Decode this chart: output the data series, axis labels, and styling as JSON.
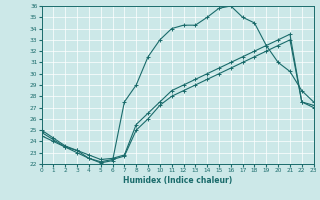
{
  "xlabel": "Humidex (Indice chaleur)",
  "bg_color": "#cce8e8",
  "line_color": "#1a6b6b",
  "xlim": [
    0,
    23
  ],
  "ylim": [
    22,
    36
  ],
  "ytick_values": [
    22,
    23,
    24,
    25,
    26,
    27,
    28,
    29,
    30,
    31,
    32,
    33,
    34,
    35,
    36
  ],
  "xtick_values": [
    0,
    1,
    2,
    3,
    4,
    5,
    6,
    7,
    8,
    9,
    10,
    11,
    12,
    13,
    14,
    15,
    16,
    17,
    18,
    19,
    20,
    21,
    22,
    23
  ],
  "curve1_x": [
    0,
    1,
    2,
    3,
    4,
    5,
    6,
    7,
    8,
    9,
    10,
    11,
    12,
    13,
    14,
    15,
    16,
    17,
    18,
    19,
    20,
    21,
    22,
    23
  ],
  "curve1_y": [
    25.0,
    24.3,
    23.6,
    23.2,
    22.5,
    22.1,
    22.3,
    27.5,
    29.0,
    31.5,
    33.0,
    34.0,
    34.3,
    34.3,
    35.0,
    35.8,
    36.0,
    35.0,
    34.5,
    32.5,
    31.0,
    30.2,
    28.5,
    27.5
  ],
  "curve2_x": [
    0,
    2,
    3,
    4,
    5,
    6,
    7,
    8,
    9,
    10,
    11,
    12,
    13,
    14,
    15,
    16,
    17,
    18,
    19,
    20,
    21,
    22,
    23
  ],
  "curve2_y": [
    24.8,
    23.5,
    23.2,
    22.8,
    22.4,
    22.5,
    22.8,
    25.5,
    26.5,
    27.5,
    28.5,
    29.0,
    29.5,
    30.0,
    30.5,
    31.0,
    31.5,
    32.0,
    32.5,
    33.0,
    33.5,
    27.5,
    27.0
  ],
  "curve3_x": [
    0,
    1,
    2,
    3,
    4,
    5,
    6,
    7,
    8,
    9,
    10,
    11,
    12,
    13,
    14,
    15,
    16,
    17,
    18,
    19,
    20,
    21,
    22,
    23
  ],
  "curve3_y": [
    24.5,
    24.0,
    23.5,
    23.0,
    22.5,
    22.2,
    22.4,
    22.7,
    25.0,
    26.0,
    27.2,
    28.0,
    28.5,
    29.0,
    29.5,
    30.0,
    30.5,
    31.0,
    31.5,
    32.0,
    32.5,
    33.0,
    27.5,
    27.2
  ]
}
